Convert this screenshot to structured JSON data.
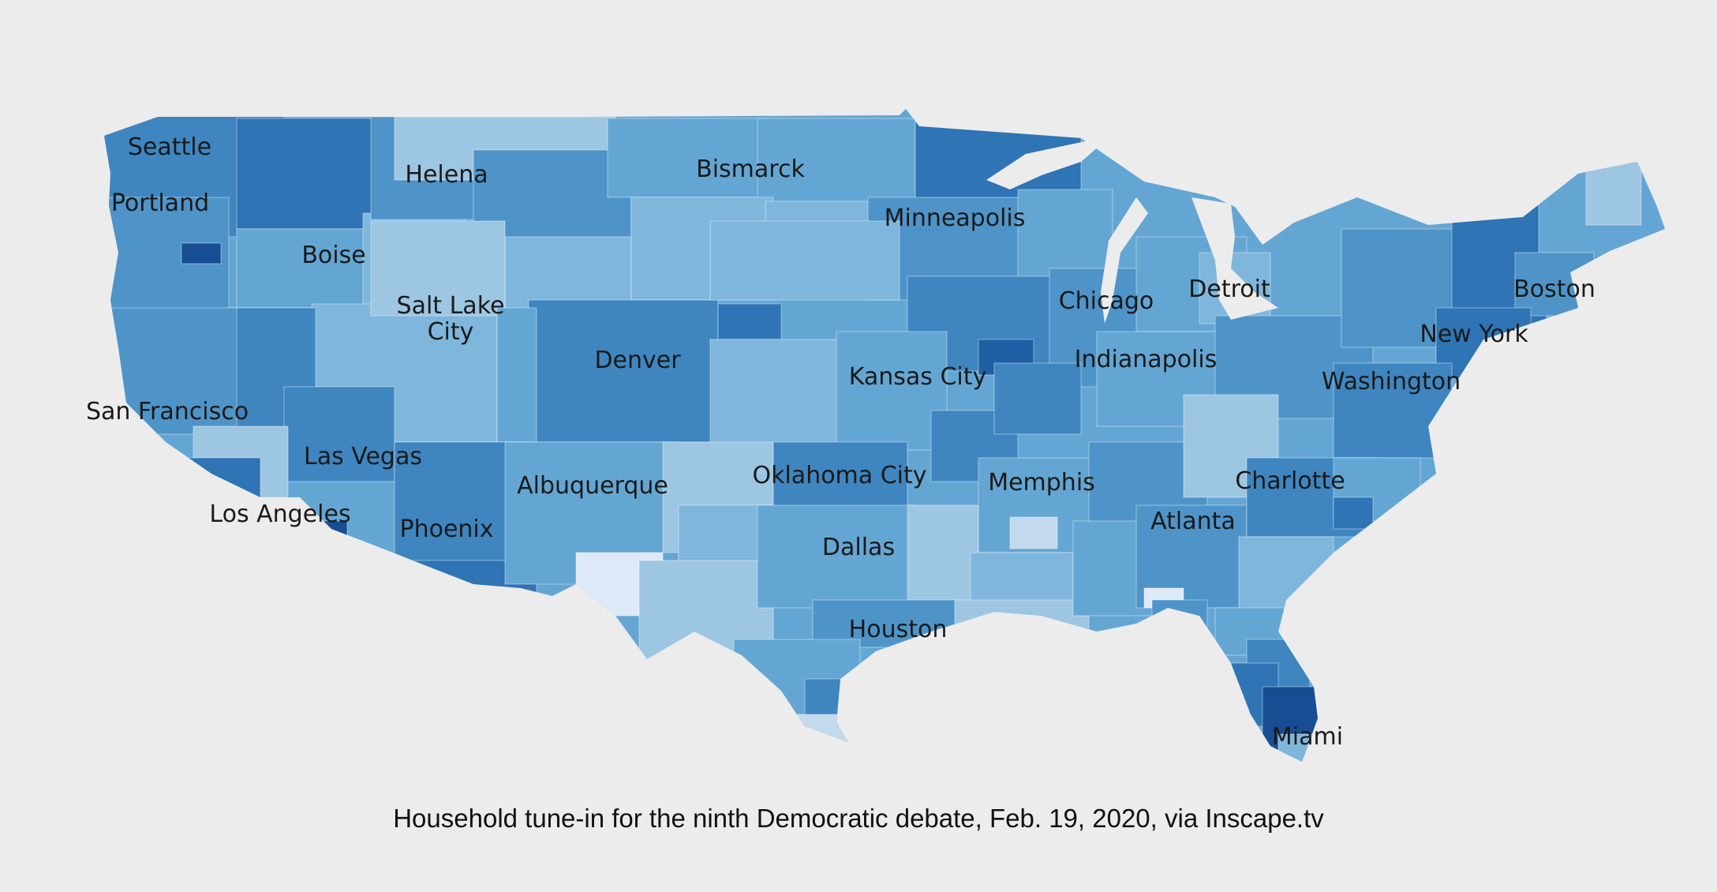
{
  "caption": "Household tune-in for the ninth Democratic debate, Feb. 19, 2020, via Inscape.tv",
  "colors": {
    "background": "#ececec",
    "scale": [
      "#dde9f6",
      "#c3d9ee",
      "#9dc6e2",
      "#7fb6dc",
      "#64a6d3",
      "#4f94c8",
      "#3f86c0",
      "#2f74b5",
      "#1f5fa4",
      "#174e93"
    ]
  },
  "cities": [
    {
      "id": "seattle",
      "label": "Seattle"
    },
    {
      "id": "portland",
      "label": "Portland"
    },
    {
      "id": "helena",
      "label": "Helena"
    },
    {
      "id": "bismarck",
      "label": "Bismarck"
    },
    {
      "id": "minneapolis",
      "label": "Minneapolis"
    },
    {
      "id": "boise",
      "label": "Boise"
    },
    {
      "id": "salt-lake-city-1",
      "label": "Salt Lake"
    },
    {
      "id": "salt-lake-city-2",
      "label": "City"
    },
    {
      "id": "denver",
      "label": "Denver"
    },
    {
      "id": "chicago",
      "label": "Chicago"
    },
    {
      "id": "detroit",
      "label": "Detroit"
    },
    {
      "id": "boston",
      "label": "Boston"
    },
    {
      "id": "new-york",
      "label": "New York"
    },
    {
      "id": "indianapolis",
      "label": "Indianapolis"
    },
    {
      "id": "kansas-city",
      "label": "Kansas City"
    },
    {
      "id": "washington",
      "label": "Washington"
    },
    {
      "id": "san-francisco",
      "label": "San Francisco"
    },
    {
      "id": "las-vegas",
      "label": "Las Vegas"
    },
    {
      "id": "albuquerque",
      "label": "Albuquerque"
    },
    {
      "id": "oklahoma-city",
      "label": "Oklahoma City"
    },
    {
      "id": "memphis",
      "label": "Memphis"
    },
    {
      "id": "charlotte",
      "label": "Charlotte"
    },
    {
      "id": "los-angeles",
      "label": "Los Angeles"
    },
    {
      "id": "phoenix",
      "label": "Phoenix"
    },
    {
      "id": "atlanta",
      "label": "Atlanta"
    },
    {
      "id": "dallas",
      "label": "Dallas"
    },
    {
      "id": "houston",
      "label": "Houston"
    },
    {
      "id": "miami",
      "label": "Miami"
    }
  ]
}
